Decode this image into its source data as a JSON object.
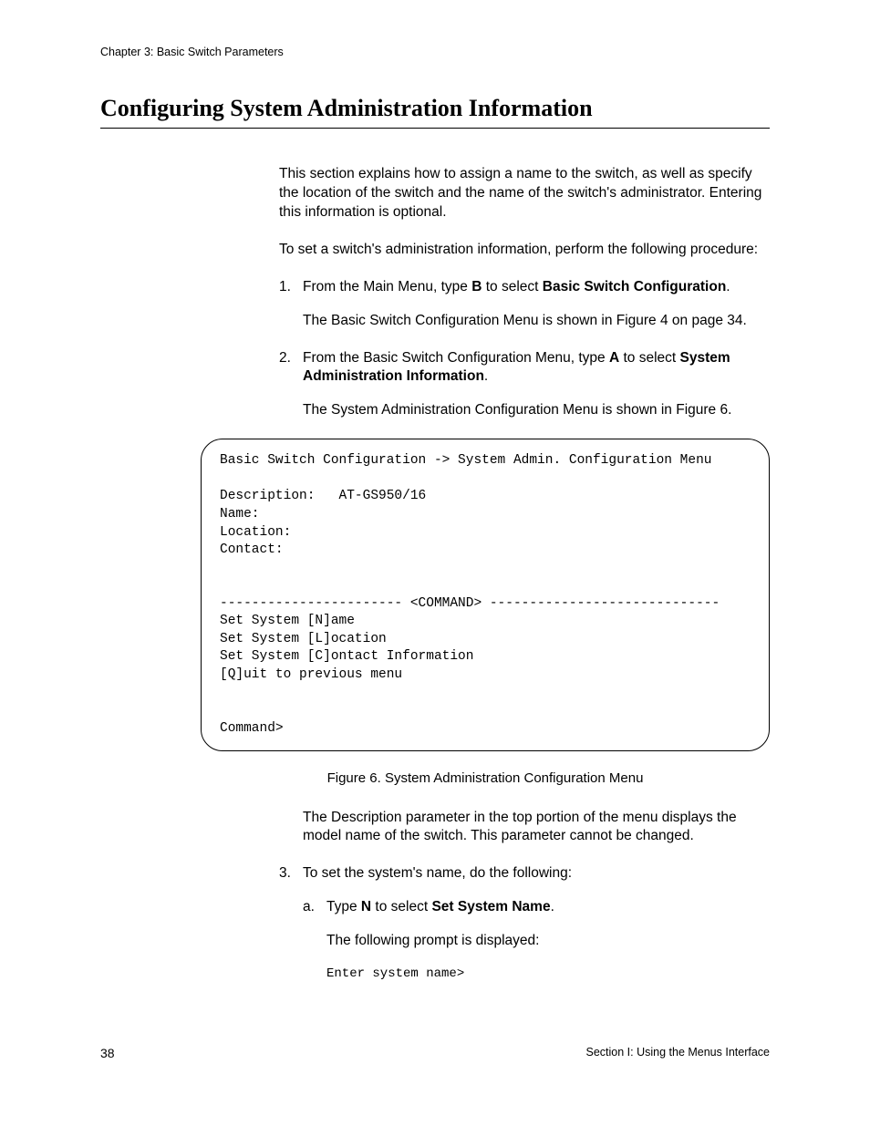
{
  "header": {
    "chapter": "Chapter 3: Basic Switch Parameters"
  },
  "title": "Configuring System Administration Information",
  "intro": "This section explains how to assign a name to the switch, as well as specify the location of the switch and the name of the switch's administrator. Entering this information is optional.",
  "intro2": "To set a switch's administration information, perform the following procedure:",
  "steps": {
    "s1_num": "1.",
    "s1_pre": "From the Main Menu, type ",
    "s1_key": "B",
    "s1_mid": " to select ",
    "s1_bold": "Basic Switch Configuration",
    "s1_post": ".",
    "s1_follow": "The Basic Switch Configuration Menu is shown in Figure 4 on page 34.",
    "s2_num": "2.",
    "s2_pre": "From the Basic Switch Configuration Menu, type ",
    "s2_key": "A",
    "s2_mid": " to select ",
    "s2_bold": "System Administration Information",
    "s2_post": ".",
    "s2_follow": "The System Administration Configuration Menu is shown in Figure 6.",
    "s3_num": "3.",
    "s3_text": "To set the system's name, do the following:",
    "s3a_num": "a.",
    "s3a_pre": "Type ",
    "s3a_key": "N",
    "s3a_mid": " to select ",
    "s3a_bold": "Set System Name",
    "s3a_post": ".",
    "s3a_follow": "The following prompt is displayed:",
    "s3a_prompt": "Enter system name>"
  },
  "menu": {
    "text": "Basic Switch Configuration -> System Admin. Configuration Menu\n\nDescription:   AT-GS950/16\nName:\nLocation:\nContact:\n\n\n----------------------- <COMMAND> -----------------------------\nSet System [N]ame\nSet System [L]ocation\nSet System [C]ontact Information\n[Q]uit to previous menu\n\n\nCommand>"
  },
  "figure_caption": "Figure 6. System Administration Configuration Menu",
  "after_figure": "The Description parameter in the top portion of the menu displays the model name of the switch. This parameter cannot be changed.",
  "footer": {
    "page": "38",
    "section": "Section I: Using the Menus Interface"
  }
}
